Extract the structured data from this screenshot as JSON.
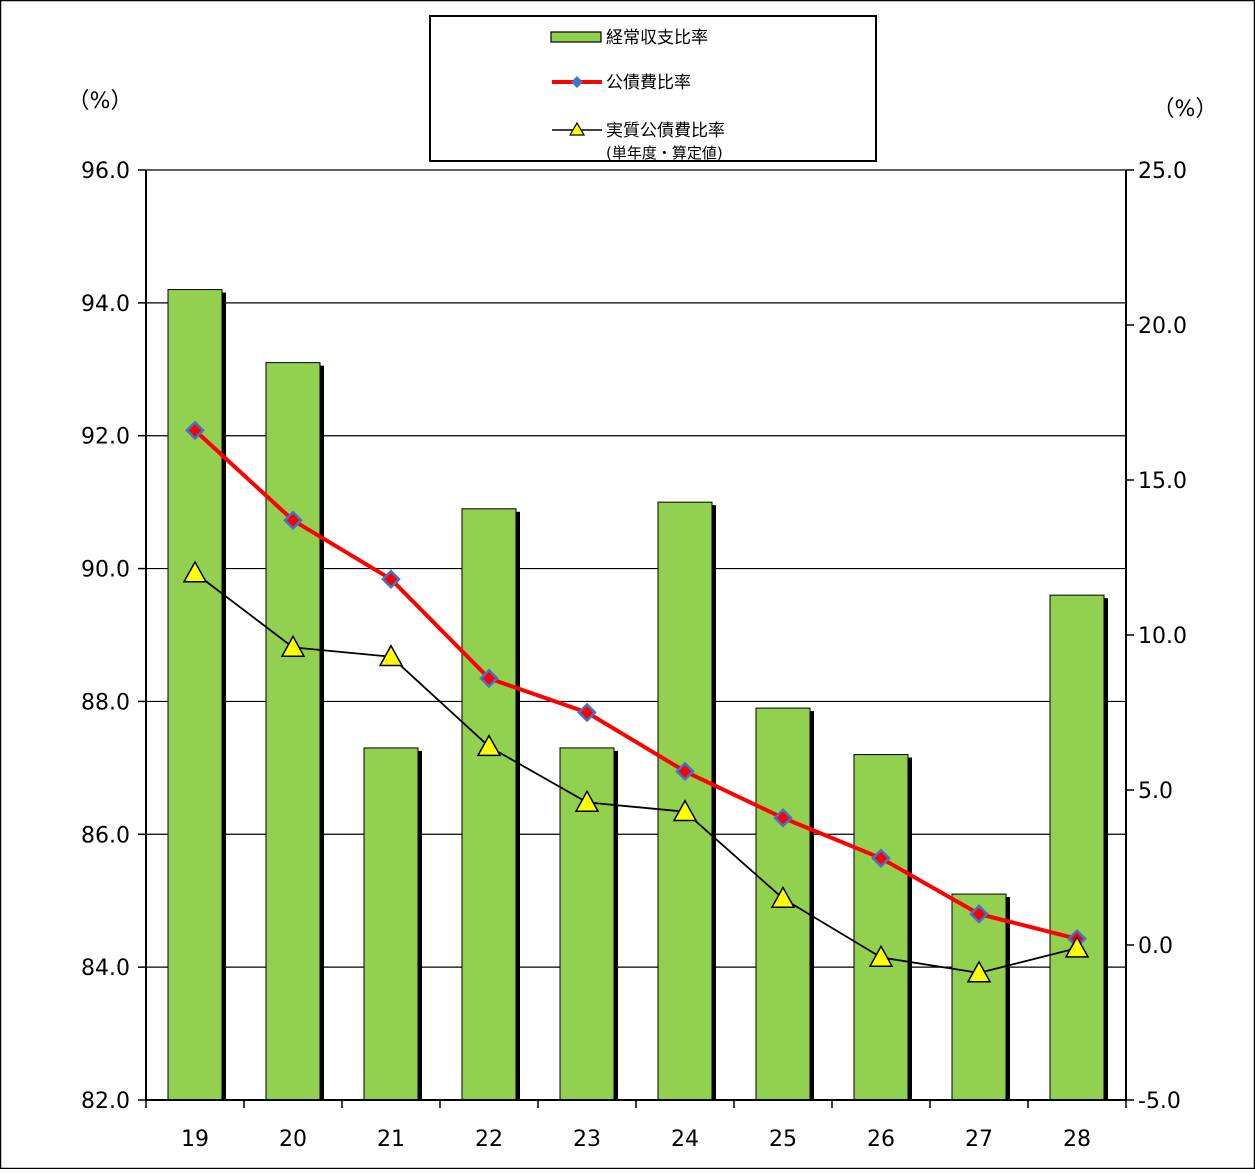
{
  "chart_data": {
    "type": "bar",
    "categories": [
      "19",
      "20",
      "21",
      "22",
      "23",
      "24",
      "25",
      "26",
      "27",
      "28"
    ],
    "series": [
      {
        "name": "経常収支比率",
        "kind": "bar",
        "axis": "left",
        "color": "#92d050",
        "values": [
          94.2,
          93.1,
          87.3,
          90.9,
          87.3,
          91.0,
          87.9,
          87.2,
          85.1,
          89.6
        ]
      },
      {
        "name": "公債費比率",
        "kind": "line",
        "axis": "right",
        "color": "#ff0000",
        "marker": "diamond",
        "marker_color": "#4472c4",
        "values": [
          16.6,
          13.7,
          11.8,
          8.6,
          7.5,
          5.6,
          4.1,
          2.8,
          1.0,
          0.2
        ]
      },
      {
        "name": "実質公債費比率",
        "name_line2": "(単年度・算定値)",
        "kind": "line",
        "axis": "right",
        "color": "#000000",
        "marker": "triangle",
        "marker_color": "#ffff00",
        "values": [
          12.0,
          9.6,
          9.3,
          6.4,
          4.6,
          4.3,
          1.5,
          -0.4,
          -0.9,
          -0.1
        ]
      }
    ],
    "y_left": {
      "unit": "（%）",
      "ylim": [
        82.0,
        96.0
      ],
      "ticks": [
        "96.0",
        "94.0",
        "92.0",
        "90.0",
        "88.0",
        "86.0",
        "84.0",
        "82.0"
      ]
    },
    "y_right": {
      "unit": "（%）",
      "ylim": [
        -5.0,
        25.0
      ],
      "ticks": [
        "25.0",
        "20.0",
        "15.0",
        "10.0",
        "5.0",
        "0.0",
        "-5.0"
      ]
    },
    "grid": true,
    "legend_position": "top-center"
  }
}
